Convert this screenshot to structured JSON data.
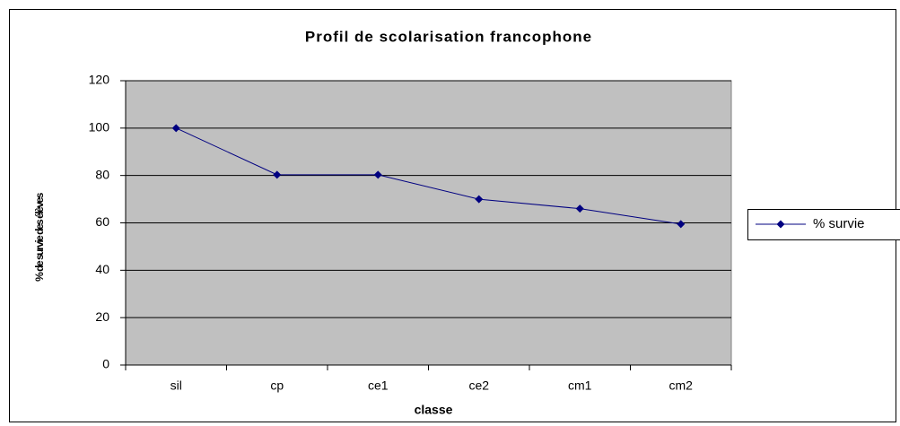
{
  "chart_data": {
    "type": "line",
    "title": "Profil de scolarisation francophone",
    "x_label": "classe",
    "y_label": "% de survie des élèves",
    "categories": [
      "sil",
      "cp",
      "ce1",
      "ce2",
      "cm1",
      "cm2"
    ],
    "series": [
      {
        "name": "% survie",
        "color": "#000080",
        "values": [
          100,
          80.3,
          80.3,
          70,
          66,
          59.5
        ]
      }
    ],
    "ylim": [
      0,
      120
    ],
    "yticks": [
      0,
      20,
      40,
      60,
      80,
      100,
      120
    ],
    "grid": true,
    "legend": "right"
  }
}
